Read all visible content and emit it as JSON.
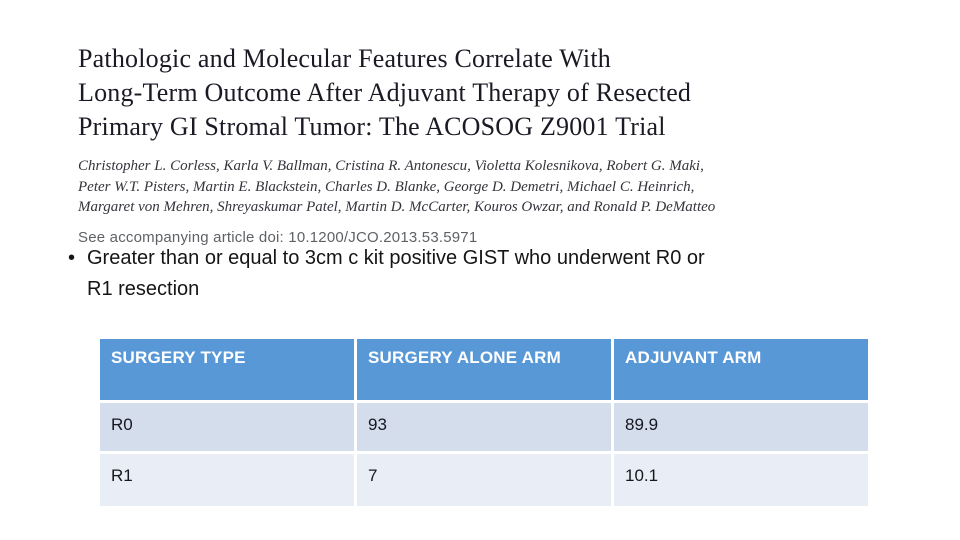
{
  "paper": {
    "title_lines": [
      "Pathologic and Molecular Features Correlate With",
      "Long-Term Outcome After Adjuvant Therapy of Resected",
      "Primary GI Stromal Tumor: The ACOSOG Z9001 Trial"
    ],
    "author_lines": [
      "Christopher L. Corless, Karla V. Ballman, Cristina R. Antonescu, Violetta Kolesnikova, Robert G. Maki,",
      "Peter W.T. Pisters, Martin E. Blackstein, Charles D. Blanke, George D. Demetri, Michael C. Heinrich,",
      "Margaret von Mehren, Shreyaskumar Patel, Martin D. McCarter, Kouros Owzar, and Ronald P. DeMatteo"
    ],
    "doi_note": "See accompanying article doi: 10.1200/JCO.2013.53.5971"
  },
  "bullet": {
    "marker": "•",
    "lines": [
      "Greater than or equal to 3cm c kit positive GIST who underwent R0 or",
      "R1 resection"
    ]
  },
  "table": {
    "headers": [
      "SURGERY TYPE",
      "SURGERY ALONE ARM",
      "ADJUVANT ARM"
    ],
    "rows": [
      [
        "R0",
        "93",
        "89.9"
      ],
      [
        "R1",
        "7",
        "10.1"
      ]
    ]
  },
  "theme": {
    "slide_bg": "#ffffff",
    "title_color": "#1a1a24",
    "authors_color": "#34343c",
    "doi_color": "#5e6266",
    "bullet_color": "#151515",
    "header_bg": "#5898d6",
    "header_text": "#ffffff",
    "row_odd_bg": "#d3ddec",
    "row_even_bg": "#e9edf5",
    "cell_text": "#17171f"
  }
}
